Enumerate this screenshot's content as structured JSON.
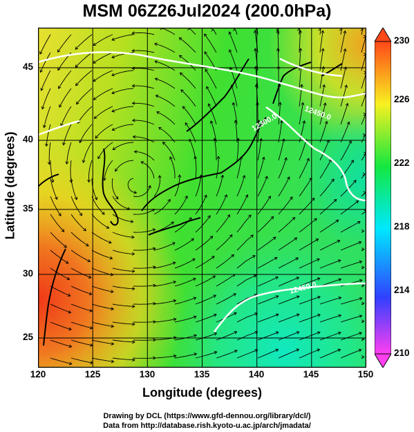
{
  "title": "MSM 06Z26Jul2024 (200.0hPa)",
  "xlabel": "Longitude (degrees)",
  "ylabel": "Latitude  (degrees)",
  "x_ticks": [
    "120",
    "125",
    "130",
    "135",
    "140",
    "145",
    "150"
  ],
  "y_ticks": [
    "25",
    "30",
    "35",
    "40",
    "45"
  ],
  "colorbar_ticks": [
    "230",
    "226",
    "222",
    "218",
    "214",
    "210"
  ],
  "contour_labels": [
    "12300.0",
    "12450.0",
    "12450.0"
  ],
  "credit_line1": "Drawing by DCL (https://www.gfd-dennou.org/library/dcl/)",
  "credit_line2": "Data from http://database.rish.kyoto-u.ac.jp/arch/jmadata/",
  "chart_data": {
    "type": "heatmap",
    "variable": "temperature with wind streamlines",
    "xlim": [
      120,
      150
    ],
    "ylim": [
      22.4,
      47.6
    ],
    "colorbar_range": [
      210,
      230
    ],
    "colorbar_colors": [
      "#ff3ff0",
      "#3040ff",
      "#00e8ff",
      "#14e840",
      "#f8f020",
      "#ff4818"
    ],
    "contour_values": [
      12300.0,
      12450.0
    ]
  }
}
